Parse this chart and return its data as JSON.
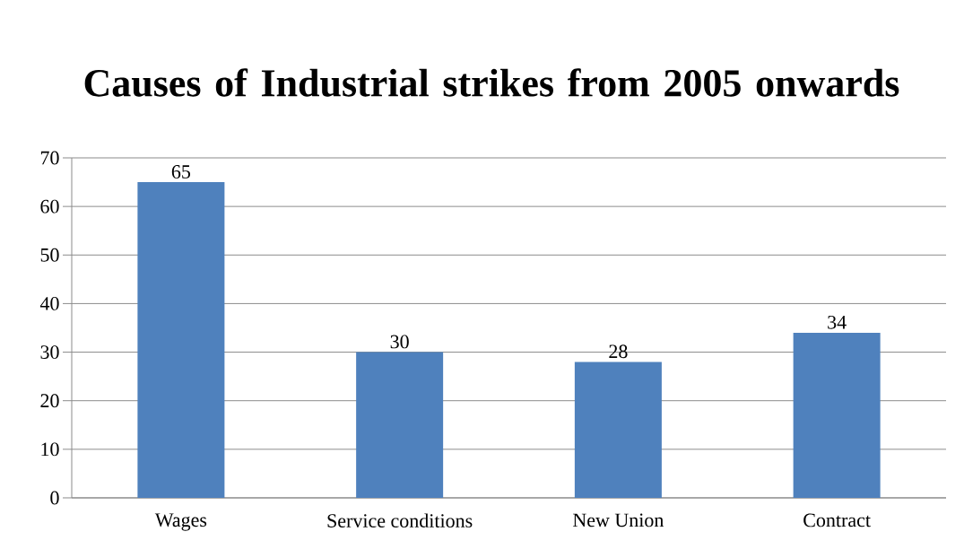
{
  "chart_data": {
    "type": "bar",
    "title": "Causes of Industrial strikes from 2005 onwards",
    "categories": [
      "Wages",
      "Service conditions",
      "New Union",
      "Contract"
    ],
    "values": [
      65,
      30,
      28,
      34
    ],
    "color": "#4f81bd",
    "ylim": [
      0,
      70
    ],
    "yticks": [
      0,
      10,
      20,
      30,
      40,
      50,
      60,
      70
    ],
    "grid": "y",
    "data_labels": true
  }
}
